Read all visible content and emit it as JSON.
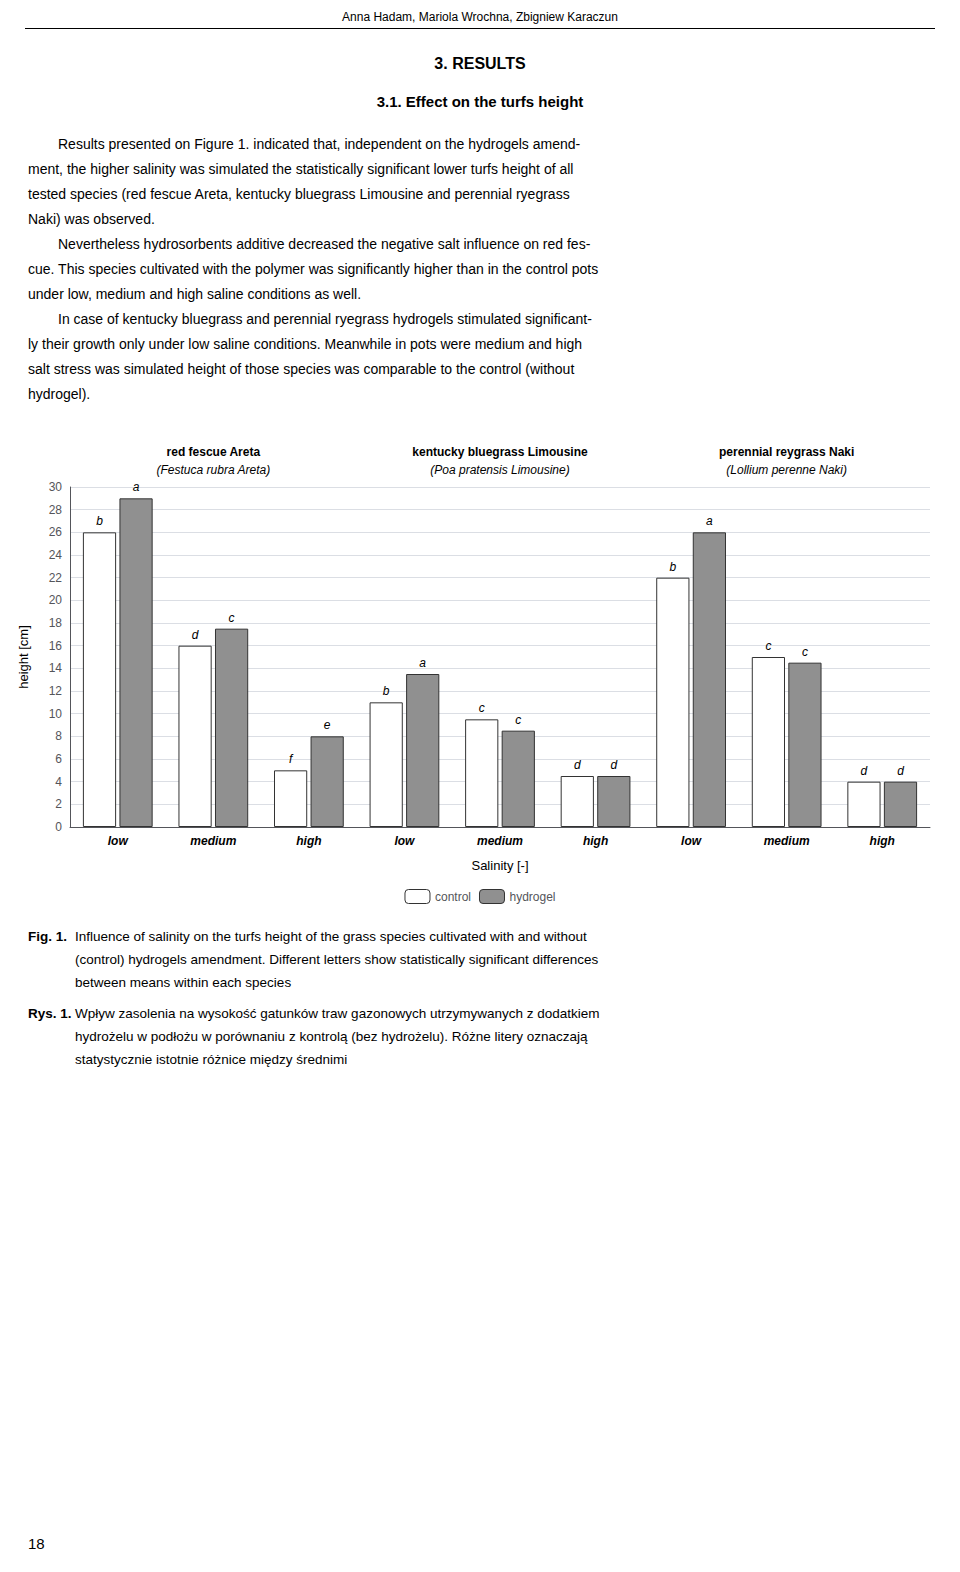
{
  "header": "Anna Hadam, Mariola Wrochna, Zbigniew Karaczun",
  "section_title": "3. RESULTS",
  "subsection_title": "3.1. Effect on the turfs height",
  "paragraphs": [
    [
      "Results presented on Figure 1. indicated that, independent on the hydrogels amend-",
      "ment, the higher salinity was simulated the statistically significant lower turfs height of all",
      "tested species (red fescue Areta, kentucky bluegrass Limousine and perennial ryegrass",
      "Naki) was observed."
    ],
    [
      "Nevertheless hydrosorbents additive decreased the negative salt influence on red fes-",
      "cue. This species cultivated with the polymer was significantly higher than in the control pots",
      "under low, medium and high saline conditions as well."
    ],
    [
      "In case of kentucky bluegrass and perennial ryegrass hydrogels stimulated significant-",
      "ly their growth only under low saline conditions. Meanwhile in pots were medium and high",
      "salt stress was simulated height of those species was comparable to the control (without",
      "hydrogel)."
    ]
  ],
  "chart_data": {
    "type": "bar",
    "categories": [
      "low",
      "medium",
      "high",
      "low",
      "medium",
      "high",
      "low",
      "medium",
      "high"
    ],
    "groups": [
      {
        "name": "red fescue Areta",
        "latin": "(Festuca rubra Areta)"
      },
      {
        "name": "kentucky bluegrass Limousine",
        "latin": "(Poa pratensis Limousine)"
      },
      {
        "name": "perennial reygrass Naki",
        "latin": "(Lollium perenne Naki)"
      }
    ],
    "xlabel": "Salinity [-]",
    "ylabel": "height [cm]",
    "ylim": [
      0,
      30
    ],
    "yticks": [
      0,
      2,
      4,
      6,
      8,
      10,
      12,
      14,
      16,
      18,
      20,
      22,
      24,
      26,
      28,
      30
    ],
    "grid": true,
    "legend": "bottom",
    "series": [
      {
        "name": "control",
        "color": "#ffffff",
        "values": [
          26.0,
          16.0,
          5.0,
          11.0,
          9.5,
          4.5,
          22.0,
          15.0,
          4.0
        ],
        "annotations": [
          "b",
          "d",
          "f",
          "b",
          "c",
          "d",
          "b",
          "c",
          "d"
        ]
      },
      {
        "name": "hydrogel",
        "color": "#909090",
        "values": [
          29.0,
          17.5,
          8.0,
          13.5,
          8.5,
          4.5,
          26.0,
          14.5,
          4.0
        ],
        "annotations": [
          "a",
          "c",
          "e",
          "a",
          "c",
          "d",
          "a",
          "c",
          "d"
        ]
      }
    ]
  },
  "captions": [
    {
      "label": "Fig. 1.",
      "lines": [
        "Influence of salinity on the turfs height of the grass species cultivated with and without",
        "(control) hydrogels amendment. Different letters show statistically significant differences",
        "between means within each species"
      ]
    },
    {
      "label": "Rys. 1.",
      "lines": [
        "Wpływ zasolenia na wysokość gatunków traw gazonowych utrzymywanych z dodatkiem",
        "hydrożelu w podłożu w porównaniu z kontrolą (bez hydrożelu). Różne litery oznaczają",
        "statystycznie istotnie różnice między średnimi"
      ]
    }
  ],
  "page_number": "18"
}
